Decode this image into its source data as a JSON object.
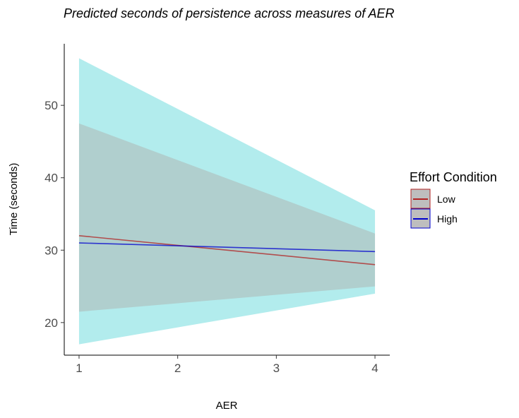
{
  "chart_data": {
    "type": "line",
    "title": "Predicted seconds of persistence across measures of AER",
    "xlabel": "AER",
    "ylabel": "Time (seconds)",
    "xlim": [
      0.85,
      4.15
    ],
    "ylim": [
      15.5,
      58.5
    ],
    "x_ticks": [
      1,
      2,
      3,
      4
    ],
    "y_ticks": [
      20,
      30,
      40,
      50
    ],
    "grid": false,
    "legend": {
      "title": "Effort Condition",
      "position": "right"
    },
    "series": [
      {
        "name": "Low",
        "color": "#b22222",
        "fill_color": "#f8766d",
        "x": [
          1,
          4
        ],
        "y": [
          32.0,
          28.0
        ],
        "ci_lower": [
          21.5,
          25.0
        ],
        "ci_upper": [
          47.5,
          32.3
        ]
      },
      {
        "name": "High",
        "color": "#0000cd",
        "fill_color": "#00bfc4",
        "x": [
          1,
          4
        ],
        "y": [
          31.0,
          29.8
        ],
        "ci_lower": [
          17.0,
          24.0
        ],
        "ci_upper": [
          56.5,
          35.5
        ]
      }
    ]
  }
}
